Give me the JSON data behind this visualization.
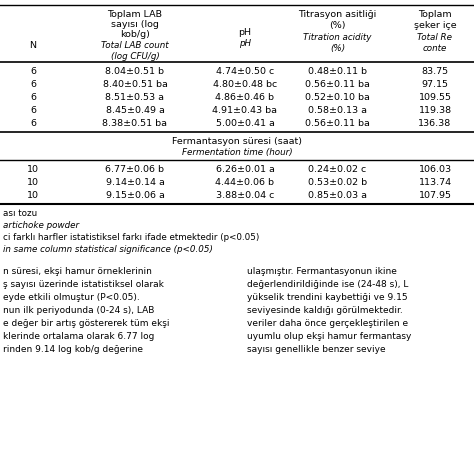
{
  "col_headers_top": [
    "N",
    "Toplam LAB\nsayısı (log\nkob/g)",
    "pH",
    "Titrasyon asitliği\n(%)",
    "Toplam\nşeker içe"
  ],
  "col_headers_italic": [
    "",
    "Total LAB count\n(log CFU/g)",
    "pH",
    "Titration acidity\n(%)",
    "Total Re\nconte"
  ],
  "section1_rows": [
    [
      "6",
      "8.04±0.51 b",
      "4.74±0.50 c",
      "0.48±0.11 b",
      "83.75"
    ],
    [
      "6",
      "8.40±0.51 ba",
      "4.80±0.48 bc",
      "0.56±0.11 ba",
      "97.15"
    ],
    [
      "6",
      "8.51±0.53 a",
      "4.86±0.46 b",
      "0.52±0.10 ba",
      "109.55"
    ],
    [
      "6",
      "8.45±0.49 a",
      "4.91±0.43 ba",
      "0.58±0.13 a",
      "119.38"
    ],
    [
      "6",
      "8.38±0.51 ba",
      "5.00±0.41 a",
      "0.56±0.11 ba",
      "136.38"
    ]
  ],
  "section2_header": "Fermantasyon süresi (saat)",
  "section2_header_italic": "Fermentation time (hour)",
  "section2_rows": [
    [
      "10",
      "6.77±0.06 b",
      "6.26±0.01 a",
      "0.24±0.02 c",
      "106.03"
    ],
    [
      "10",
      "9.14±0.14 a",
      "4.44±0.06 b",
      "0.53±0.02 b",
      "113.74"
    ],
    [
      "10",
      "9.15±0.06 a",
      "3.88±0.04 c",
      "0.85±0.03 a",
      "107.95"
    ]
  ],
  "footnote1": "ası tozu",
  "footnote2": "artichoke powder",
  "footnote3": "ci farklı harfler istatistiksel farkı ifade etmektedir (p<0.05)",
  "footnote4": "in same column statistical significance (p<0.05)",
  "para_left": [
    "n süresi, ekşi hamur örneklerinin",
    "ş sayısı üzerinde istatistiksel olarak",
    "eyde etkili olmuştur (P<0.05).",
    "nun ilk periyodunda (0-24 s), LAB",
    "e değer bir artış göstererek tüm ekşi",
    "klerinde ortalama olarak 6.77 log",
    "rinden 9.14 log kob/g değerine"
  ],
  "para_right": [
    "ulaşmıştır. Fermantasyonun ikine",
    "değerlendirildiğinde ise (24-48 s), L",
    "yükselik trendini kaybettiği ve 9.15",
    "seviyesinde kaldığı görülmektedir.",
    "veriler daha önce gerçekleştirilen e",
    "uyumlu olup ekşi hamur fermantasy",
    "sayısı genellikle benzer seviye"
  ]
}
